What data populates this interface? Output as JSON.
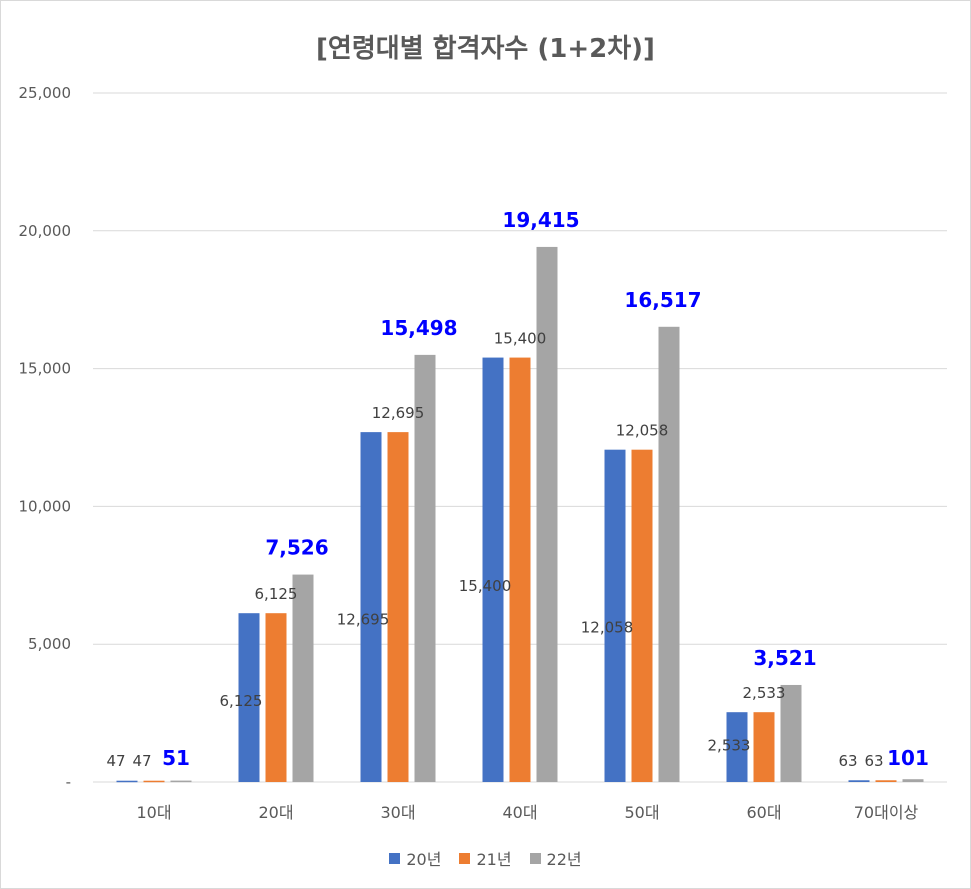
{
  "chart_data": {
    "type": "bar",
    "title": "[연령대별 합격자수 (1+2차)]",
    "categories": [
      "10대",
      "20대",
      "30대",
      "40대",
      "50대",
      "60대",
      "70대이상"
    ],
    "series": [
      {
        "name": "20년",
        "values": [
          47,
          6125,
          12695,
          15400,
          12058,
          2533,
          63
        ],
        "color": "#4472c4"
      },
      {
        "name": "21년",
        "values": [
          47,
          6125,
          12695,
          15400,
          12058,
          2533,
          63
        ],
        "color": "#ed7d31"
      },
      {
        "name": "22년",
        "values": [
          51,
          7526,
          15498,
          19415,
          16517,
          3521,
          101
        ],
        "color": "#a5a5a5"
      }
    ],
    "data_labels": {
      "20년": [
        "",
        "6,125",
        "12,695",
        "15,400",
        "12,058",
        "2,533",
        ""
      ],
      "21년": [
        "47",
        "6,125",
        "12,695",
        "15,400",
        "12,058",
        "2,533",
        "63"
      ],
      "22년": [
        "51",
        "7,526",
        "15,498",
        "19,415",
        "16,517",
        "3,521",
        "101"
      ],
      "extra_10s_label": "47",
      "extra_70s_label": "63"
    },
    "highlight_label_color": "#0000ff",
    "ylim": [
      0,
      25000
    ],
    "y_ticks": [
      "-",
      "5,000",
      "10,000",
      "15,000",
      "20,000",
      "25,000"
    ],
    "grid": true,
    "legend_position": "bottom"
  }
}
